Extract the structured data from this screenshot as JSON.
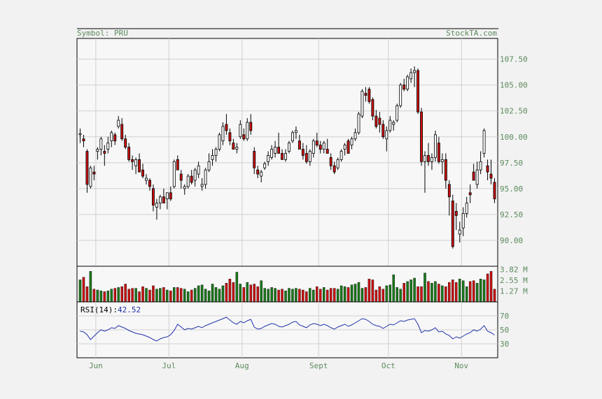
{
  "header": {
    "symbol_text": "Symbol: PRU",
    "source_text": "StockTA.com"
  },
  "colors": {
    "label": "#5c8a5c",
    "up": "#ffffff",
    "down": "#cc1111",
    "vol_up": "#1a7a1a",
    "vol_down": "#cc1111",
    "rsi_line": "#2233aa",
    "rsi_label": "#2233aa",
    "grid": "#d0d0d0",
    "plot_bg": "#f7f7f7"
  },
  "chart_data": [
    {
      "type": "candlestick",
      "title": "",
      "xlabel": "",
      "ylabel": "",
      "ylim": [
        87.5,
        109.5
      ],
      "grid": true,
      "yticks": [
        "90.00",
        "92.50",
        "95.00",
        "97.50",
        "100.00",
        "102.50",
        "105.00",
        "107.50"
      ],
      "x_tick_labels": [
        "Jun",
        "Jul",
        "Aug",
        "Sept",
        "Oct",
        "Nov"
      ],
      "month_start_index": [
        5,
        26,
        47,
        69,
        89,
        110
      ],
      "ohlc": [
        [
          100.2,
          100.8,
          99.4,
          100.3
        ],
        [
          99.8,
          100.2,
          99.0,
          99.6
        ],
        [
          98.6,
          98.8,
          94.6,
          95.4
        ],
        [
          95.2,
          97.2,
          95.0,
          97.0
        ],
        [
          96.6,
          97.2,
          95.8,
          96.4
        ],
        [
          98.6,
          99.0,
          97.8,
          98.8
        ],
        [
          98.8,
          100.0,
          98.2,
          99.8
        ],
        [
          98.6,
          99.2,
          97.2,
          98.4
        ],
        [
          98.8,
          100.0,
          98.4,
          99.4
        ],
        [
          99.6,
          100.6,
          99.0,
          100.4
        ],
        [
          100.2,
          100.4,
          99.2,
          99.6
        ],
        [
          101.0,
          102.0,
          100.8,
          101.6
        ],
        [
          101.2,
          101.8,
          99.6,
          99.8
        ],
        [
          99.8,
          100.2,
          98.8,
          99.0
        ],
        [
          99.0,
          99.4,
          97.6,
          97.8
        ],
        [
          97.8,
          98.2,
          96.8,
          97.6
        ],
        [
          97.2,
          98.0,
          96.4,
          97.8
        ],
        [
          97.8,
          98.4,
          96.6,
          96.6
        ],
        [
          96.8,
          97.4,
          96.0,
          96.2
        ],
        [
          95.8,
          96.4,
          95.4,
          96.0
        ],
        [
          95.8,
          96.0,
          94.8,
          95.2
        ],
        [
          95.0,
          95.4,
          92.8,
          93.4
        ],
        [
          93.2,
          94.0,
          92.0,
          93.6
        ],
        [
          93.6,
          94.4,
          93.0,
          94.2
        ],
        [
          94.2,
          95.0,
          93.6,
          93.6
        ],
        [
          94.0,
          94.4,
          93.0,
          94.6
        ],
        [
          94.6,
          95.2,
          93.8,
          94.0
        ],
        [
          95.2,
          97.8,
          95.0,
          97.6
        ],
        [
          97.8,
          98.2,
          96.8,
          96.8
        ],
        [
          96.4,
          96.8,
          95.0,
          95.8
        ],
        [
          95.0,
          95.4,
          94.4,
          95.2
        ],
        [
          95.2,
          96.4,
          95.0,
          96.2
        ],
        [
          96.2,
          96.8,
          95.4,
          95.6
        ],
        [
          95.8,
          97.0,
          95.2,
          96.8
        ],
        [
          96.4,
          97.6,
          96.0,
          97.2
        ],
        [
          95.2,
          96.0,
          94.8,
          95.4
        ],
        [
          95.4,
          97.0,
          95.0,
          96.8
        ],
        [
          96.8,
          98.4,
          96.6,
          97.6
        ],
        [
          97.8,
          98.8,
          97.2,
          98.2
        ],
        [
          98.2,
          99.0,
          97.6,
          98.8
        ],
        [
          98.8,
          100.4,
          98.6,
          100.2
        ],
        [
          99.6,
          101.4,
          99.2,
          101.0
        ],
        [
          101.2,
          102.2,
          100.2,
          100.6
        ],
        [
          100.4,
          100.8,
          99.2,
          99.6
        ],
        [
          99.4,
          99.8,
          98.8,
          98.8
        ],
        [
          98.8,
          99.4,
          98.4,
          99.0
        ],
        [
          100.0,
          101.6,
          99.8,
          101.2
        ],
        [
          100.2,
          100.8,
          99.6,
          99.8
        ],
        [
          99.8,
          101.8,
          99.6,
          101.4
        ],
        [
          101.4,
          102.2,
          100.2,
          100.6
        ],
        [
          98.6,
          99.0,
          96.4,
          97.0
        ],
        [
          96.8,
          97.2,
          96.0,
          96.4
        ],
        [
          96.2,
          96.8,
          95.6,
          96.6
        ],
        [
          97.0,
          97.6,
          96.8,
          97.4
        ],
        [
          97.6,
          98.6,
          97.2,
          98.2
        ],
        [
          98.0,
          99.2,
          97.8,
          98.8
        ],
        [
          98.4,
          99.6,
          98.0,
          99.0
        ],
        [
          99.0,
          100.4,
          98.6,
          98.4
        ],
        [
          98.4,
          98.8,
          97.8,
          97.8
        ],
        [
          97.8,
          98.8,
          97.6,
          98.4
        ],
        [
          98.6,
          99.6,
          98.4,
          99.4
        ],
        [
          99.6,
          100.6,
          99.4,
          100.4
        ],
        [
          100.4,
          101.0,
          99.8,
          100.6
        ],
        [
          99.6,
          100.2,
          98.8,
          98.8
        ],
        [
          98.8,
          99.4,
          97.8,
          98.2
        ],
        [
          98.4,
          99.2,
          97.4,
          97.6
        ],
        [
          97.6,
          98.8,
          97.2,
          98.6
        ],
        [
          98.4,
          99.8,
          98.0,
          99.6
        ],
        [
          99.6,
          100.4,
          99.0,
          99.2
        ],
        [
          99.2,
          99.6,
          98.4,
          98.8
        ],
        [
          98.8,
          99.6,
          98.4,
          99.4
        ],
        [
          98.8,
          99.8,
          98.4,
          98.4
        ],
        [
          98.0,
          98.4,
          96.8,
          97.2
        ],
        [
          97.2,
          97.6,
          96.4,
          96.6
        ],
        [
          97.0,
          98.0,
          96.8,
          97.8
        ],
        [
          97.8,
          98.8,
          97.6,
          98.6
        ],
        [
          98.8,
          99.4,
          98.2,
          99.2
        ],
        [
          99.6,
          99.8,
          98.4,
          98.4
        ],
        [
          99.2,
          100.0,
          98.8,
          99.8
        ],
        [
          99.8,
          100.8,
          99.6,
          100.4
        ],
        [
          100.4,
          102.4,
          100.2,
          102.2
        ],
        [
          102.0,
          104.6,
          101.8,
          104.4
        ],
        [
          104.2,
          104.8,
          103.4,
          104.0
        ],
        [
          104.6,
          104.8,
          103.2,
          103.4
        ],
        [
          103.6,
          103.8,
          101.6,
          102.0
        ],
        [
          102.0,
          102.6,
          100.8,
          101.0
        ],
        [
          101.8,
          102.4,
          100.4,
          101.2
        ],
        [
          101.2,
          101.6,
          99.8,
          100.0
        ],
        [
          99.8,
          101.0,
          98.6,
          100.6
        ],
        [
          100.6,
          102.0,
          100.4,
          101.6
        ],
        [
          101.2,
          101.6,
          100.6,
          101.4
        ],
        [
          101.6,
          103.2,
          101.4,
          103.0
        ],
        [
          103.0,
          105.2,
          102.8,
          105.0
        ],
        [
          105.0,
          105.6,
          104.4,
          104.6
        ],
        [
          104.6,
          106.0,
          104.4,
          105.8
        ],
        [
          105.6,
          106.6,
          105.2,
          106.2
        ],
        [
          106.2,
          106.8,
          104.8,
          106.4
        ],
        [
          106.4,
          106.6,
          102.2,
          102.4
        ],
        [
          102.4,
          102.8,
          97.2,
          97.6
        ],
        [
          97.6,
          98.6,
          94.6,
          98.2
        ],
        [
          98.2,
          99.4,
          97.2,
          97.6
        ],
        [
          97.6,
          98.4,
          96.8,
          98.0
        ],
        [
          98.0,
          100.6,
          97.6,
          100.2
        ],
        [
          99.4,
          100.0,
          97.4,
          97.6
        ],
        [
          97.6,
          98.4,
          96.4,
          97.8
        ],
        [
          97.8,
          98.4,
          95.0,
          95.8
        ],
        [
          95.4,
          95.8,
          92.4,
          94.2
        ],
        [
          93.8,
          94.4,
          89.2,
          89.4
        ],
        [
          92.8,
          93.6,
          91.0,
          92.4
        ],
        [
          90.6,
          91.8,
          89.8,
          91.0
        ],
        [
          91.2,
          93.2,
          90.4,
          92.6
        ],
        [
          92.6,
          94.2,
          92.2,
          93.6
        ],
        [
          94.6,
          95.4,
          93.6,
          94.4
        ],
        [
          96.6,
          97.4,
          95.8,
          95.8
        ],
        [
          95.4,
          97.6,
          95.0,
          96.8
        ],
        [
          96.8,
          98.6,
          96.4,
          97.6
        ],
        [
          98.4,
          100.8,
          98.0,
          100.6
        ],
        [
          97.2,
          97.8,
          95.8,
          96.6
        ],
        [
          96.4,
          97.8,
          95.4,
          96.0
        ],
        [
          95.6,
          96.0,
          93.6,
          94.0
        ]
      ]
    },
    {
      "type": "bar",
      "title": "",
      "ylabel": "",
      "unit": "M",
      "yticks": [
        "3.82 M",
        "2.55 M",
        "1.27 M"
      ],
      "ylim": [
        0,
        4.2
      ],
      "values": [
        2.6,
        2.9,
        1.8,
        3.6,
        1.5,
        1.4,
        1.3,
        1.2,
        1.3,
        1.5,
        1.6,
        1.7,
        1.8,
        2.1,
        1.5,
        1.6,
        1.6,
        1.2,
        1.8,
        1.6,
        1.4,
        1.9,
        1.5,
        1.6,
        1.7,
        1.4,
        1.3,
        1.7,
        1.7,
        1.6,
        1.5,
        1.2,
        1.4,
        1.6,
        1.9,
        2.0,
        1.5,
        1.3,
        2.1,
        1.7,
        1.5,
        1.9,
        2.2,
        2.7,
        2.3,
        3.5,
        2.1,
        1.7,
        2.3,
        2.0,
        2.1,
        1.8,
        2.5,
        1.6,
        1.5,
        1.7,
        1.6,
        1.4,
        1.5,
        1.3,
        1.6,
        1.5,
        1.6,
        1.5,
        1.4,
        1.2,
        1.6,
        1.4,
        1.8,
        1.5,
        1.7,
        1.4,
        1.6,
        1.6,
        1.5,
        1.9,
        1.8,
        1.7,
        2.0,
        2.1,
        2.3,
        1.6,
        1.7,
        2.7,
        2.6,
        1.4,
        1.8,
        1.5,
        1.9,
        2.0,
        3.2,
        1.7,
        1.5,
        2.2,
        2.4,
        2.6,
        2.8,
        1.8,
        1.8,
        3.4,
        2.4,
        2.2,
        2.4,
        2.1,
        1.9,
        1.8,
        2.3,
        2.6,
        2.3,
        2.7,
        2.5,
        1.8,
        2.4,
        2.5,
        2.2,
        2.7,
        2.6,
        3.3,
        3.6,
        1.5
      ]
    },
    {
      "type": "line",
      "title": "",
      "label_name": "RSI(14):",
      "label_value": "42.52",
      "ylim": [
        10,
        90
      ],
      "yticks": [
        "70",
        "50",
        "30"
      ],
      "values": [
        48,
        47,
        43,
        36,
        41,
        46,
        50,
        48,
        50,
        53,
        52,
        56,
        54,
        52,
        49,
        47,
        45,
        44,
        43,
        41,
        39,
        36,
        34,
        37,
        39,
        40,
        43,
        49,
        58,
        54,
        50,
        52,
        51,
        53,
        55,
        53,
        56,
        58,
        60,
        62,
        64,
        66,
        68,
        64,
        60,
        58,
        62,
        60,
        63,
        65,
        54,
        51,
        52,
        55,
        57,
        59,
        58,
        55,
        54,
        56,
        58,
        61,
        62,
        57,
        55,
        53,
        57,
        59,
        58,
        56,
        58,
        56,
        53,
        51,
        54,
        56,
        58,
        55,
        57,
        60,
        63,
        66,
        65,
        62,
        58,
        56,
        55,
        52,
        55,
        58,
        57,
        60,
        63,
        62,
        64,
        65,
        66,
        58,
        46,
        49,
        48,
        50,
        53,
        47,
        48,
        44,
        42,
        37,
        40,
        38,
        41,
        44,
        46,
        50,
        48,
        51,
        56,
        48,
        46,
        42.52
      ]
    }
  ]
}
